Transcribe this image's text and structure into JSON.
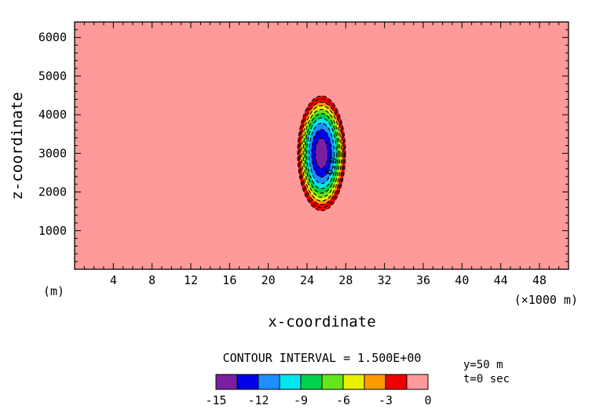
{
  "chart_data": {
    "type": "heatmap",
    "subtype": "filled-contour",
    "xlabel": "x-coordinate",
    "ylabel": "z-coordinate",
    "x_unit_left": "(m)",
    "x_unit_right": "(×1000 m)",
    "xlim": [
      0,
      51
    ],
    "ylim": [
      0,
      6400
    ],
    "x_ticks": [
      4,
      8,
      12,
      16,
      20,
      24,
      28,
      32,
      36,
      40,
      44,
      48
    ],
    "x_tick_labels": [
      "4",
      "8",
      "12",
      "16",
      "20",
      "24",
      "28",
      "32",
      "36",
      "40",
      "44",
      "48"
    ],
    "y_ticks": [
      1000,
      2000,
      3000,
      4000,
      5000,
      6000
    ],
    "y_tick_labels": [
      "1000",
      "2000",
      "3000",
      "4000",
      "5000",
      "6000"
    ],
    "field": {
      "center_x": 25.5,
      "center_z": 3000,
      "min_value": -16,
      "outer_radius_x": 2.6,
      "outer_radius_z": 1560
    },
    "contour_interval_label": "CONTOUR INTERVAL = 1.500E+00",
    "contour_levels": [
      -15,
      -13.5,
      -12,
      -10.5,
      -9,
      -7.5,
      -6,
      -4.5,
      -3,
      -1.5,
      0
    ],
    "contour_label": "-6.0",
    "background_level": 0,
    "colorbar": {
      "colors": [
        "#7a1fa2",
        "#0000e6",
        "#1e8fff",
        "#00e5ee",
        "#00d14a",
        "#66e61a",
        "#e6f000",
        "#ff9a00",
        "#ef0000",
        "#ff9a9a"
      ],
      "tick_values": [
        -15,
        -12,
        -9,
        -6,
        -3,
        0
      ],
      "tick_labels": [
        "-15",
        "-12",
        "-9",
        "-6",
        "-3",
        "0"
      ]
    },
    "annotations": {
      "y_position": "y=50 m",
      "time": "t=0 sec"
    }
  }
}
